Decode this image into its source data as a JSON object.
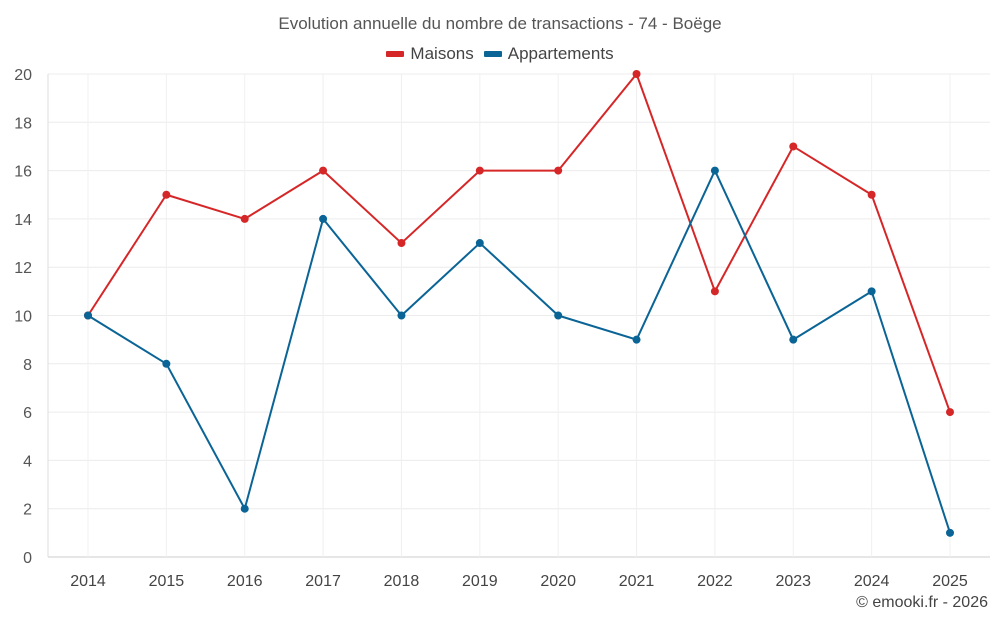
{
  "chart_data": {
    "type": "line",
    "title": "Evolution annuelle du nombre de transactions - 74 - Boëge",
    "categories": [
      "2014",
      "2015",
      "2016",
      "2017",
      "2018",
      "2019",
      "2020",
      "2021",
      "2022",
      "2023",
      "2024",
      "2025"
    ],
    "series": [
      {
        "name": "Maisons",
        "color": "#d62728",
        "values": [
          10,
          15,
          14,
          16,
          13,
          16,
          16,
          20,
          11,
          17,
          15,
          6
        ]
      },
      {
        "name": "Appartements",
        "color": "#0a6496",
        "values": [
          10,
          8,
          2,
          14,
          10,
          13,
          10,
          9,
          16,
          9,
          11,
          1
        ]
      }
    ],
    "xlabel": "",
    "ylabel": "",
    "ylim": [
      0,
      20
    ],
    "yticks": [
      0,
      2,
      4,
      6,
      8,
      10,
      12,
      14,
      16,
      18,
      20
    ],
    "grid": true,
    "legend_position": "top-center"
  },
  "credit": "© emooki.fr - 2026"
}
